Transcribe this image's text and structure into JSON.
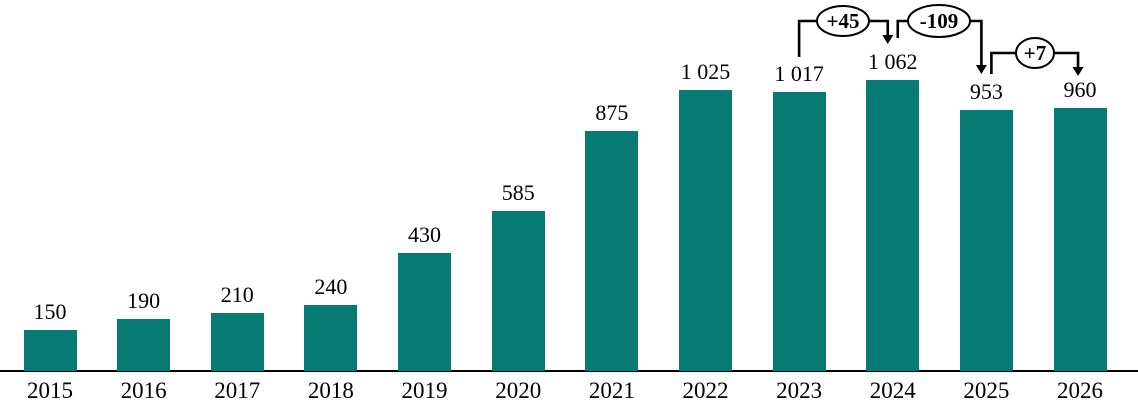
{
  "chart_data": {
    "type": "bar",
    "title": "",
    "xlabel": "",
    "ylabel": "",
    "ylim": [
      0,
      1100
    ],
    "grid": false,
    "legend": null,
    "categories": [
      "2015",
      "2016",
      "2017",
      "2018",
      "2019",
      "2020",
      "2021",
      "2022",
      "2023",
      "2024",
      "2025",
      "2026"
    ],
    "values": [
      150,
      190,
      210,
      240,
      430,
      585,
      875,
      1025,
      1017,
      1062,
      953,
      960
    ],
    "value_labels": [
      "150",
      "190",
      "210",
      "240",
      "430",
      "585",
      "875",
      "1 025",
      "1 017",
      "1 062",
      "953",
      "960"
    ],
    "annotations": [
      {
        "label": "+45",
        "from": "2023",
        "to": "2024",
        "from_index": 8,
        "to_index": 9
      },
      {
        "label": "-109",
        "from": "2024",
        "to": "2025",
        "from_index": 9,
        "to_index": 10
      },
      {
        "label": "+7",
        "from": "2025",
        "to": "2026",
        "from_index": 10,
        "to_index": 11
      }
    ]
  },
  "colors": {
    "bar": "#077a73",
    "text": "#000000",
    "line": "#000000",
    "bubble_fill": "#ffffff"
  }
}
